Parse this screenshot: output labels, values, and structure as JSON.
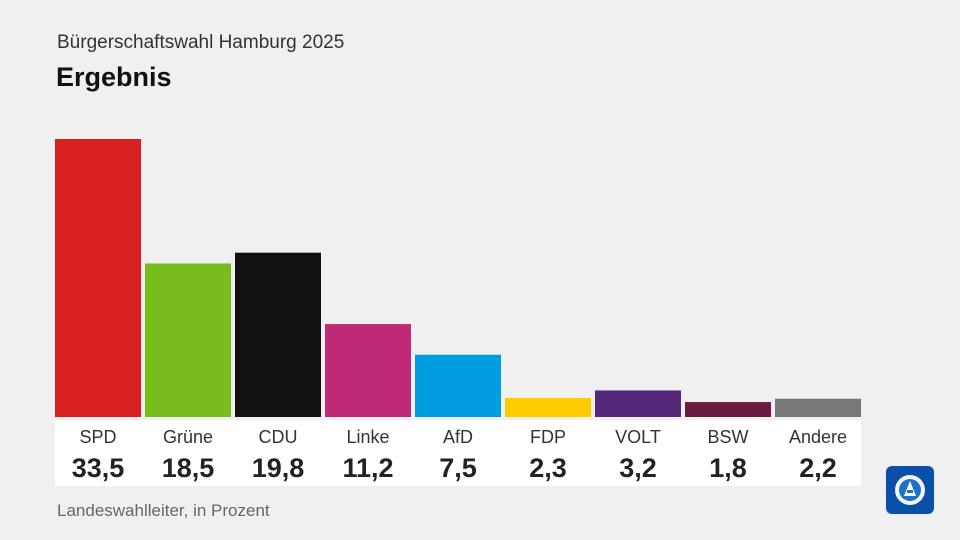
{
  "header": {
    "subtitle": "Bürgerschaftswahl Hamburg 2025",
    "title": "Ergebnis"
  },
  "footer": {
    "source": "Landeswahlleiter, in Prozent",
    "logo_icon": "ard-logo-icon"
  },
  "chart_data": {
    "type": "bar",
    "title": "Ergebnis",
    "subtitle": "Bürgerschaftswahl Hamburg 2025",
    "ylabel": "Prozent",
    "ylim": [
      0,
      33.5
    ],
    "categories": [
      "SPD",
      "Grüne",
      "CDU",
      "Linke",
      "AfD",
      "FDP",
      "VOLT",
      "BSW",
      "Andere"
    ],
    "values": [
      33.5,
      18.5,
      19.8,
      11.2,
      7.5,
      2.3,
      3.2,
      1.8,
      2.2
    ],
    "value_labels": [
      "33,5",
      "18,5",
      "19,8",
      "11,2",
      "7,5",
      "2,3",
      "3,2",
      "1,8",
      "2,2"
    ],
    "colors": [
      "#d7201f",
      "#78bc1e",
      "#111111",
      "#bf2a77",
      "#009ee0",
      "#ffcc00",
      "#55277b",
      "#6b1a3f",
      "#777777"
    ]
  }
}
